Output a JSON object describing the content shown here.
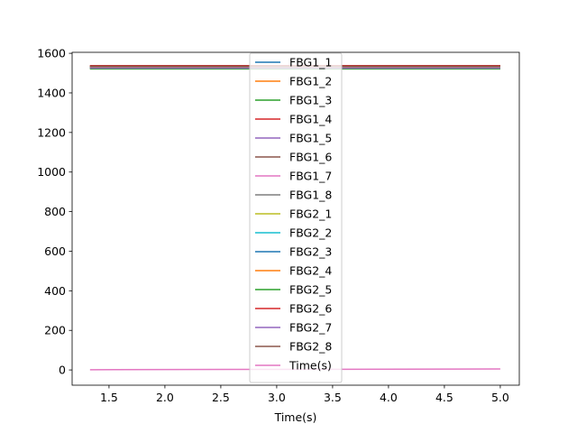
{
  "chart_data": {
    "type": "line",
    "title": "",
    "xlabel": "Time(s)",
    "ylabel": "",
    "xlim": [
      1.17,
      5.17
    ],
    "ylim": [
      -77,
      1605
    ],
    "xticks": [
      1.5,
      2.0,
      2.5,
      3.0,
      3.5,
      4.0,
      4.5,
      5.0
    ],
    "xtick_labels": [
      "1.5",
      "2.0",
      "2.5",
      "3.0",
      "3.5",
      "4.0",
      "4.5",
      "5.0"
    ],
    "yticks": [
      0,
      200,
      400,
      600,
      800,
      1000,
      1200,
      1400,
      1600
    ],
    "ytick_labels": [
      "0",
      "200",
      "400",
      "600",
      "800",
      "1000",
      "1200",
      "1400",
      "1600"
    ],
    "grid": false,
    "legend_position": "center",
    "x": [
      1.33,
      5.0
    ],
    "series": [
      {
        "name": "FBG1_1",
        "color": "#1f77b4",
        "values": [
          1530,
          1530
        ]
      },
      {
        "name": "FBG1_2",
        "color": "#ff7f0e",
        "values": [
          1534,
          1534
        ]
      },
      {
        "name": "FBG1_3",
        "color": "#2ca02c",
        "values": [
          1522,
          1522
        ]
      },
      {
        "name": "FBG1_4",
        "color": "#d62728",
        "values": [
          1538,
          1538
        ]
      },
      {
        "name": "FBG1_5",
        "color": "#9467bd",
        "values": [
          1526,
          1526
        ]
      },
      {
        "name": "FBG1_6",
        "color": "#8c564b",
        "values": [
          1532,
          1532
        ]
      },
      {
        "name": "FBG1_7",
        "color": "#e377c2",
        "values": [
          1528,
          1528
        ]
      },
      {
        "name": "FBG1_8",
        "color": "#7f7f7f",
        "values": [
          1536,
          1536
        ]
      },
      {
        "name": "FBG2_1",
        "color": "#bcbd22",
        "values": [
          1524,
          1524
        ]
      },
      {
        "name": "FBG2_2",
        "color": "#17becf",
        "values": [
          1531,
          1531
        ]
      },
      {
        "name": "FBG2_3",
        "color": "#1f77b4",
        "values": [
          1527,
          1527
        ]
      },
      {
        "name": "FBG2_4",
        "color": "#ff7f0e",
        "values": [
          1533,
          1533
        ]
      },
      {
        "name": "FBG2_5",
        "color": "#2ca02c",
        "values": [
          1521,
          1521
        ]
      },
      {
        "name": "FBG2_6",
        "color": "#d62728",
        "values": [
          1537,
          1537
        ]
      },
      {
        "name": "FBG2_7",
        "color": "#9467bd",
        "values": [
          1525,
          1525
        ]
      },
      {
        "name": "FBG2_8",
        "color": "#8c564b",
        "values": [
          1535,
          1535
        ]
      },
      {
        "name": "Time(s)",
        "color": "#e377c2",
        "values": [
          1.33,
          5.0
        ]
      }
    ]
  }
}
